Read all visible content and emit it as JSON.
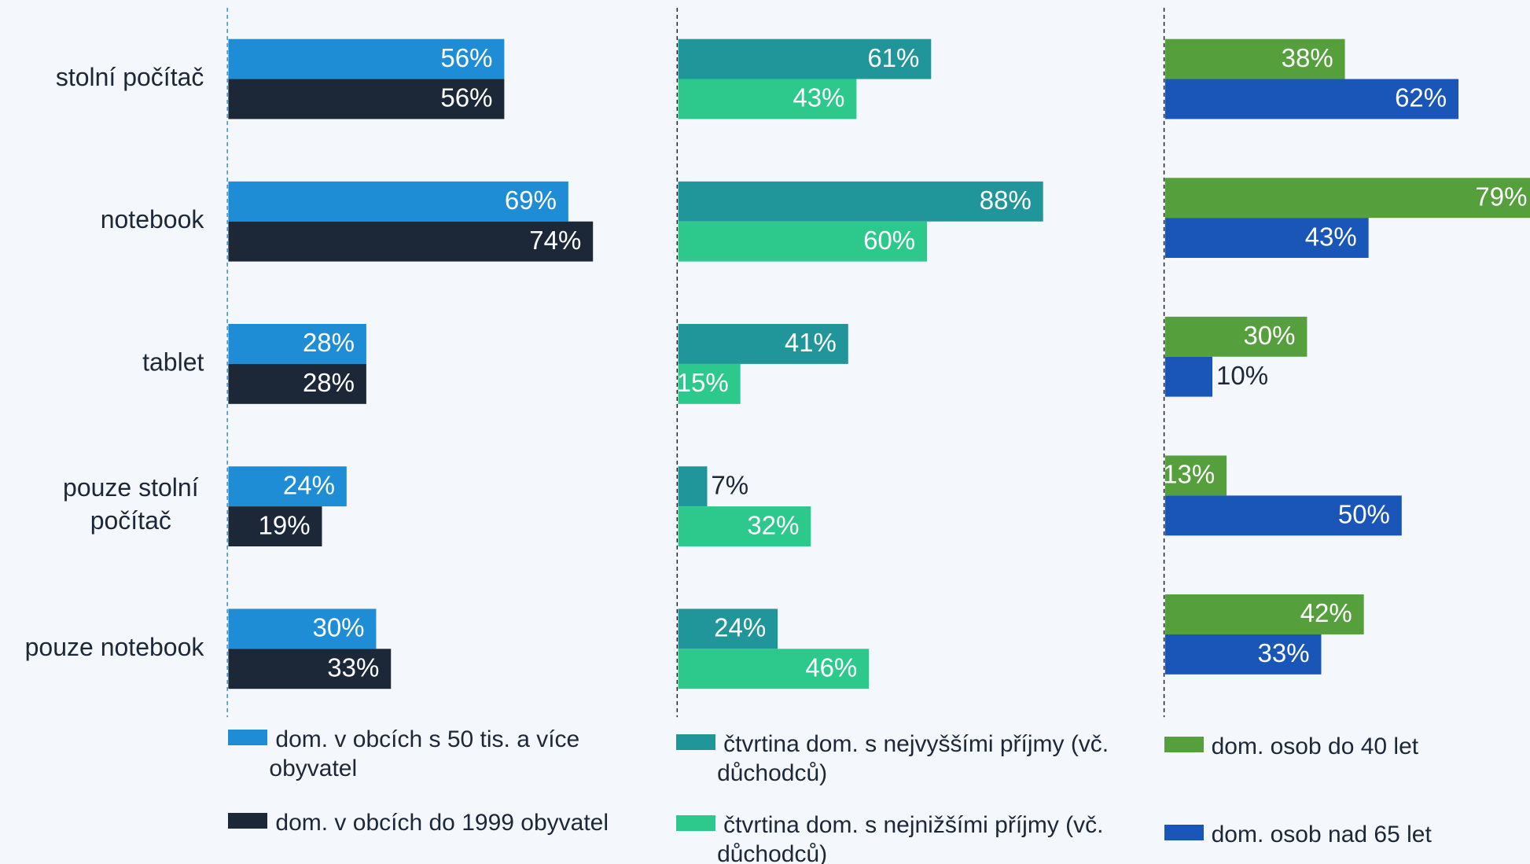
{
  "chart_data": [
    {
      "type": "bar",
      "orientation": "horizontal",
      "categories": [
        "stolní počítač",
        "notebook",
        "tablet",
        "pouze stolní počítač",
        "pouze notebook"
      ],
      "xlim": [
        0,
        100
      ],
      "series": [
        {
          "name": "dom. v obcích s 50 tis. a více obyvatel",
          "color": "#1f8dd6",
          "values": [
            56,
            69,
            28,
            24,
            30
          ],
          "value_labels": [
            "56%",
            "69%",
            "28%",
            "24%",
            "30%"
          ]
        },
        {
          "name": "dom. v obcích do 1999 obyvatel",
          "color": "#1c2738",
          "values": [
            56,
            74,
            28,
            19,
            33
          ],
          "value_labels": [
            "56%",
            "74%",
            "28%",
            "19%",
            "33%"
          ]
        }
      ]
    },
    {
      "type": "bar",
      "orientation": "horizontal",
      "xlim": [
        0,
        100
      ],
      "series": [
        {
          "name": "čtvrtina dom. s nejvyššími příjmy (vč. důchodců)",
          "color": "#20969a",
          "values": [
            61,
            88,
            41,
            7,
            24
          ],
          "value_labels": [
            "61%",
            "88%",
            "41%",
            "7%",
            "24%"
          ]
        },
        {
          "name": "čtvrtina dom. s nejnižšími příjmy (vč. důchodců)",
          "color": "#2dc98c",
          "values": [
            43,
            60,
            15,
            32,
            46
          ],
          "value_labels": [
            "43%",
            "60%",
            "15%",
            "32%",
            "46%"
          ]
        }
      ]
    },
    {
      "type": "bar",
      "orientation": "horizontal",
      "xlim": [
        0,
        100
      ],
      "series": [
        {
          "name": "dom. osob do 40 let",
          "color": "#55a03c",
          "values": [
            38,
            79,
            30,
            13,
            42
          ],
          "value_labels": [
            "38%",
            "79%",
            "30%",
            "13%",
            "42%"
          ]
        },
        {
          "name": "dom. osob nad 65 let",
          "color": "#1a56b8",
          "values": [
            62,
            43,
            10,
            50,
            33
          ],
          "value_labels": [
            "62%",
            "43%",
            "10%",
            "50%",
            "33%"
          ]
        }
      ]
    }
  ]
}
